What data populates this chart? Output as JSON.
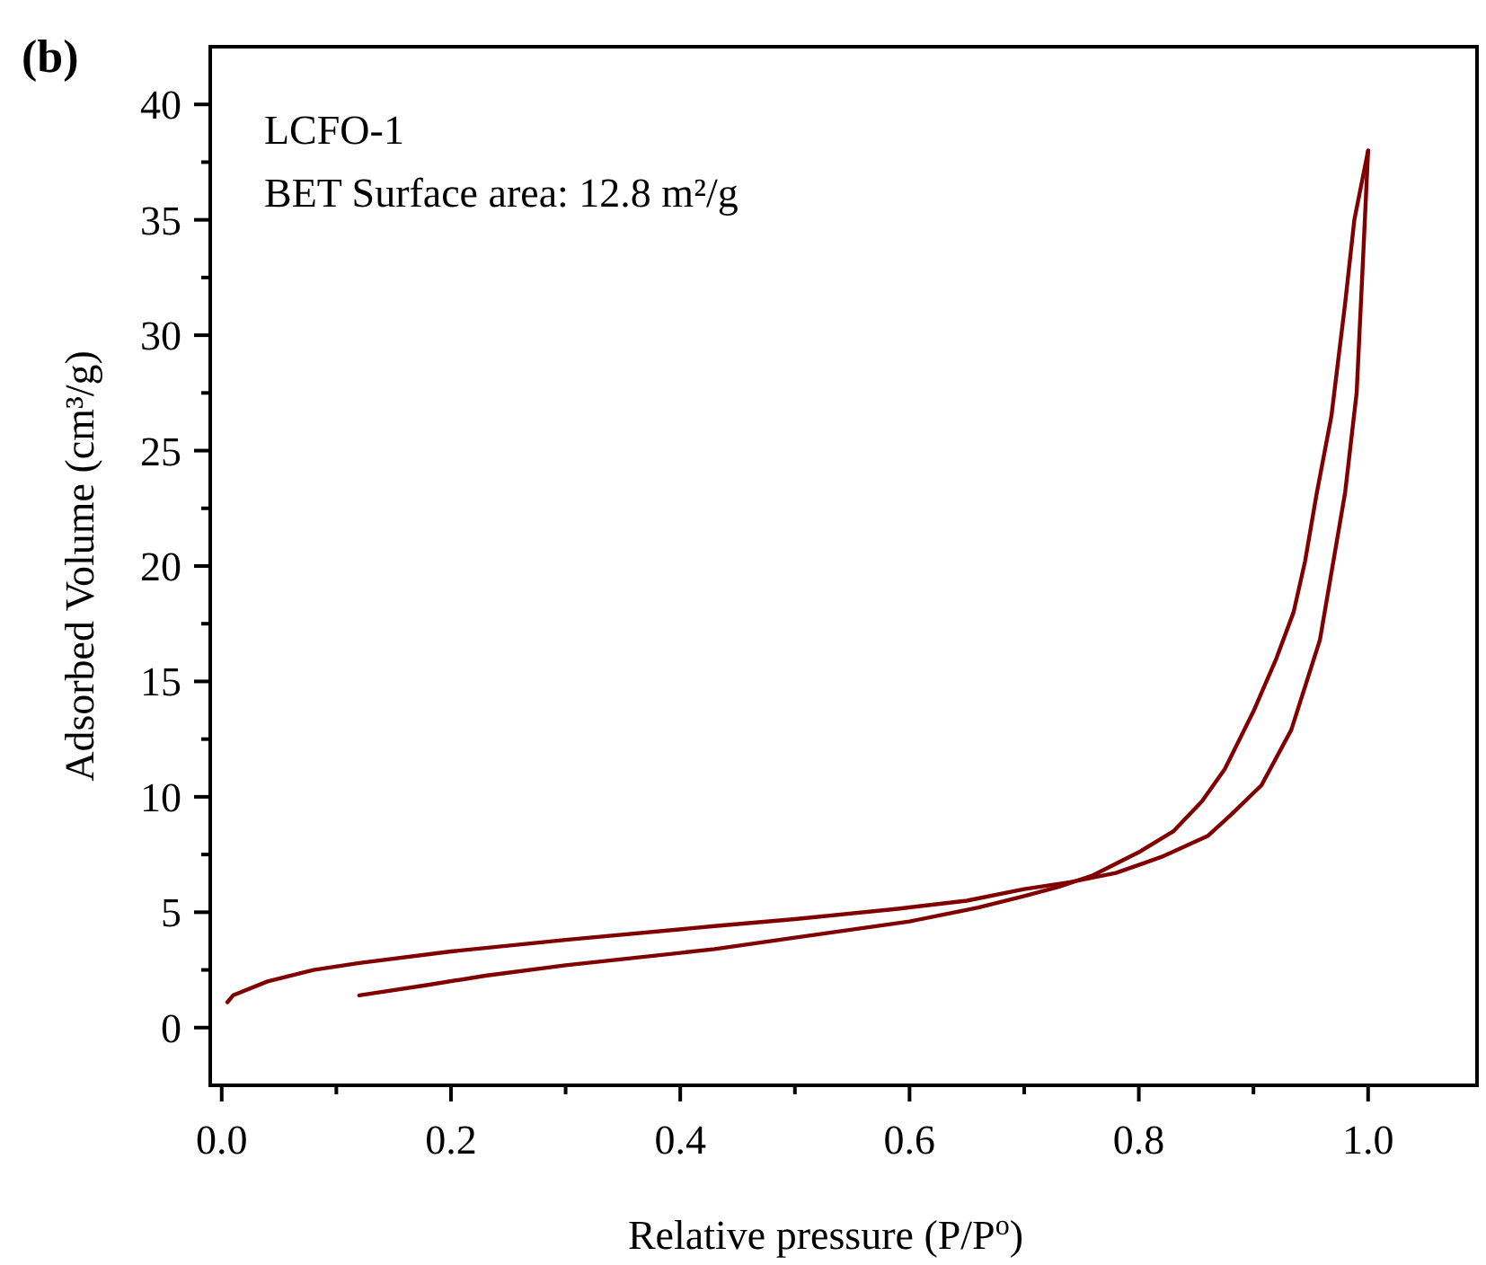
{
  "chart_data": {
    "type": "line",
    "xlabel": "Relative pressure (P/P$^{o}$)",
    "ylabel": "Adsorbed Volume (cm³/g)",
    "annotations": [
      "(b)",
      "LCFO-1",
      "BET Surface area: 12.8 m²/g"
    ],
    "xlim": [
      -0.01,
      1.095
    ],
    "ylim": [
      -2.5,
      42.5
    ],
    "xticks": [
      {
        "value": 0,
        "label": "0.0"
      },
      {
        "value": 0.1,
        "label": null
      },
      {
        "value": 0.2,
        "label": "0.2"
      },
      {
        "value": 0.3,
        "label": null
      },
      {
        "value": 0.4,
        "label": "0.4"
      },
      {
        "value": 0.5,
        "label": null
      },
      {
        "value": 0.6,
        "label": "0.6"
      },
      {
        "value": 0.7,
        "label": null
      },
      {
        "value": 0.8,
        "label": "0.8"
      },
      {
        "value": 0.9,
        "label": null
      },
      {
        "value": 1,
        "label": "1.0"
      }
    ],
    "yticks": [
      0,
      {
        "value": 2.5,
        "label": null
      },
      5,
      {
        "value": 7.5,
        "label": null
      },
      10,
      {
        "value": 12.5,
        "label": null
      },
      15,
      {
        "value": 17.5,
        "label": null
      },
      20,
      {
        "value": 22.5,
        "label": null
      },
      25,
      {
        "value": 27.5,
        "label": null
      },
      30,
      {
        "value": 32.5,
        "label": null
      },
      35,
      {
        "value": 37.5,
        "label": null
      },
      40
    ],
    "grid": false,
    "marker": "none",
    "line_style": "solid",
    "series": [
      {
        "color": "#800000",
        "x": [
          0.12,
          0.18,
          0.23,
          0.3,
          0.43,
          0.5,
          0.6,
          0.66,
          0.7,
          0.73,
          0.76,
          0.8,
          0.83,
          0.855,
          0.875,
          0.9,
          0.92,
          0.935,
          0.945,
          0.955,
          0.968,
          0.98,
          0.988,
          1.0
        ],
        "values": [
          1.4,
          1.85,
          2.25,
          2.7,
          3.4,
          3.9,
          4.6,
          5.2,
          5.7,
          6.1,
          6.6,
          7.6,
          8.5,
          9.8,
          11.2,
          13.7,
          16,
          18,
          20.2,
          23.1,
          26.5,
          31.4,
          35,
          38
        ]
      },
      {
        "color": "#800000",
        "x": [
          1.0,
          0.995,
          0.99,
          0.98,
          0.958,
          0.933,
          0.907,
          0.88,
          0.86,
          0.82,
          0.78,
          0.74,
          0.7,
          0.65,
          0.59,
          0.5,
          0.43,
          0.3,
          0.2,
          0.12,
          0.08,
          0.04,
          0.01,
          0.005
        ],
        "values": [
          38,
          32.7,
          27.5,
          23.2,
          16.8,
          12.9,
          10.5,
          9.2,
          8.3,
          7.4,
          6.7,
          6.3,
          6.0,
          5.5,
          5.15,
          4.7,
          4.4,
          3.8,
          3.3,
          2.8,
          2.5,
          2.0,
          1.4,
          1.1
        ]
      }
    ]
  }
}
